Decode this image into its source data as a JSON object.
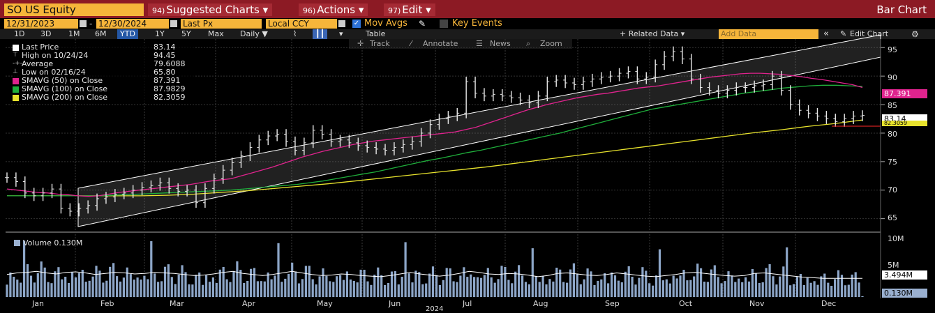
{
  "header": {
    "ticker": "SO US Equity",
    "menus": [
      {
        "num": "94)",
        "label": "Suggested Charts ▾"
      },
      {
        "num": "96)",
        "label": "Actions ▾"
      },
      {
        "num": "97)",
        "label": "Edit ▾"
      }
    ],
    "chart_title": "Bar Chart"
  },
  "controls": {
    "start_date": "12/31/2023",
    "end_date": "12/30/2024",
    "dash": "-",
    "field": "Last Px",
    "currency": "Local CCY",
    "mov_avgs": "Mov Avgs",
    "key_events": "Key Events"
  },
  "toolbar": {
    "periods": [
      "1D",
      "3D",
      "1M",
      "6M",
      "YTD",
      "1Y",
      "5Y",
      "Max"
    ],
    "active_period": "YTD",
    "frequency": "Daily ▼",
    "table": "Table",
    "related_data": "+ Related Data ▾",
    "add_data_placeholder": "Add Data",
    "edit_chart": "Edit Chart",
    "collapse": "«",
    "gear": "⚙"
  },
  "tools": [
    "Track",
    "Annotate",
    "News",
    "Zoom"
  ],
  "legend": [
    {
      "name": "Last Price",
      "value": "83.14",
      "color": "#ffffff"
    },
    {
      "name": "High on 10/24/24",
      "value": "94.45",
      "color": "none"
    },
    {
      "name": "Average",
      "value": "79.6088",
      "color": "none"
    },
    {
      "name": "Low on 02/16/24",
      "value": "65.80",
      "color": "none"
    },
    {
      "name": "SMAVG (50)  on Close",
      "value": "87.391",
      "color": "#e0238e"
    },
    {
      "name": "SMAVG (100)  on Close",
      "value": "87.9829",
      "color": "#1fae3b"
    },
    {
      "name": "SMAVG (200)  on Close",
      "value": "82.3059",
      "color": "#e7e22d"
    }
  ],
  "volume_legend": {
    "name": "Volume",
    "value": "0.130M"
  },
  "flags": {
    "sma50": {
      "text": "87.391",
      "bg": "#e0238e",
      "fg": "#ffffff"
    },
    "last": {
      "text": "83.14",
      "bg": "#ffffff",
      "fg": "#000000"
    },
    "sma200": {
      "text": "82.3059",
      "bg": "#e7e22d",
      "fg": "#000000"
    },
    "vol_avg": {
      "text": "3.494M",
      "bg": "#ffffff",
      "fg": "#000000"
    },
    "vol_last": {
      "text": "0.130M",
      "bg": "#9ab0d0",
      "fg": "#000000"
    }
  },
  "chart_data": {
    "type": "bar",
    "title": "SO US Equity",
    "x_label": "2024",
    "months": [
      "Jan",
      "Feb",
      "Mar",
      "Apr",
      "May",
      "Jun",
      "Jul",
      "Aug",
      "Sep",
      "Oct",
      "Nov",
      "Dec"
    ],
    "price_axis": {
      "ticks": [
        65,
        70,
        75,
        80,
        85,
        90,
        95
      ],
      "ylim": [
        63,
        96.5
      ]
    },
    "volume_axis": {
      "ticks": [
        "5M",
        "10M"
      ],
      "tick_values": [
        5,
        10
      ],
      "ylim": [
        0,
        12
      ]
    },
    "price_close": [
      72.2,
      71.5,
      69.5,
      69.0,
      69.5,
      70.2,
      66.8,
      66.3,
      66.8,
      67.3,
      68.5,
      68.8,
      69.3,
      69.5,
      70.0,
      70.5,
      70.8,
      71.3,
      70.3,
      69.8,
      70.0,
      67.8,
      70.3,
      72.0,
      73.5,
      74.8,
      76.0,
      77.5,
      78.8,
      79.5,
      79.8,
      78.5,
      77.0,
      78.3,
      80.5,
      79.8,
      78.5,
      78.8,
      78.3,
      77.8,
      77.5,
      77.2,
      77.0,
      77.5,
      78.0,
      78.5,
      80.0,
      81.5,
      82.5,
      83.0,
      83.5,
      89.0,
      87.0,
      86.5,
      86.8,
      86.5,
      86.2,
      85.8,
      85.3,
      86.5,
      89.0,
      89.3,
      88.8,
      88.5,
      89.0,
      89.5,
      89.8,
      90.0,
      90.5,
      90.8,
      89.5,
      89.8,
      92.0,
      93.5,
      94.3,
      93.0,
      89.5,
      88.0,
      87.5,
      87.0,
      87.5,
      88.0,
      88.0,
      88.3,
      88.5,
      90.0,
      87.5,
      85.0,
      84.0,
      83.5,
      83.0,
      82.5,
      82.0,
      82.5,
      83.0,
      83.1
    ],
    "sma50": [
      [
        1,
        70.2
      ],
      [
        2,
        70.0
      ],
      [
        3,
        69.8
      ],
      [
        4,
        69.6
      ],
      [
        5,
        69.5
      ],
      [
        6,
        69.3
      ],
      [
        7,
        69.2
      ],
      [
        8,
        69.0
      ],
      [
        9,
        68.9
      ],
      [
        10,
        69.0
      ],
      [
        11,
        69.3
      ],
      [
        12,
        69.6
      ],
      [
        13,
        69.8
      ],
      [
        14,
        70.0
      ],
      [
        15,
        70.2
      ],
      [
        16,
        70.4
      ],
      [
        17,
        70.6
      ],
      [
        18,
        70.8
      ],
      [
        19,
        71.0
      ],
      [
        20,
        71.3
      ],
      [
        21,
        71.6
      ],
      [
        22,
        71.8
      ],
      [
        23,
        72.0
      ],
      [
        24,
        72.5
      ],
      [
        25,
        73.0
      ],
      [
        26,
        73.5
      ],
      [
        27,
        74.0
      ],
      [
        28,
        74.6
      ],
      [
        29,
        75.2
      ],
      [
        30,
        75.8
      ],
      [
        31,
        76.3
      ],
      [
        32,
        76.8
      ],
      [
        33,
        77.2
      ],
      [
        34,
        77.6
      ],
      [
        35,
        78.0
      ],
      [
        36,
        78.3
      ],
      [
        37,
        78.6
      ],
      [
        38,
        78.8
      ],
      [
        39,
        79.0
      ],
      [
        40,
        79.2
      ],
      [
        41,
        79.4
      ],
      [
        42,
        79.6
      ],
      [
        43,
        79.8
      ],
      [
        44,
        80.0
      ],
      [
        45,
        80.2
      ],
      [
        46,
        80.6
      ],
      [
        47,
        81.0
      ],
      [
        48,
        81.6
      ],
      [
        49,
        82.2
      ],
      [
        50,
        82.8
      ],
      [
        51,
        83.4
      ],
      [
        52,
        84.0
      ],
      [
        53,
        84.5
      ],
      [
        54,
        85.0
      ],
      [
        55,
        85.4
      ],
      [
        56,
        85.8
      ],
      [
        57,
        86.2
      ],
      [
        58,
        86.5
      ],
      [
        59,
        86.8
      ],
      [
        60,
        87.0
      ],
      [
        61,
        87.3
      ],
      [
        62,
        87.6
      ],
      [
        63,
        87.9
      ],
      [
        64,
        88.1
      ],
      [
        65,
        88.3
      ],
      [
        66,
        88.6
      ],
      [
        67,
        88.9
      ],
      [
        68,
        89.2
      ],
      [
        69,
        89.5
      ],
      [
        70,
        89.8
      ],
      [
        71,
        90.0
      ],
      [
        72,
        90.2
      ],
      [
        73,
        90.4
      ],
      [
        74,
        90.5
      ],
      [
        75,
        90.5
      ],
      [
        76,
        90.4
      ],
      [
        77,
        90.3
      ],
      [
        78,
        90.1
      ],
      [
        79,
        89.9
      ],
      [
        80,
        89.6
      ],
      [
        81,
        89.4
      ],
      [
        82,
        89.1
      ],
      [
        83,
        88.8
      ],
      [
        84,
        88.5
      ],
      [
        85,
        88.0
      ]
    ],
    "sma100": [
      [
        1,
        69.0
      ],
      [
        2,
        69.0
      ],
      [
        3,
        69.0
      ],
      [
        4,
        69.0
      ],
      [
        5,
        69.0
      ],
      [
        6,
        69.0
      ],
      [
        7,
        69.0
      ],
      [
        8,
        69.0
      ],
      [
        9,
        69.1
      ],
      [
        10,
        69.2
      ],
      [
        11,
        69.3
      ],
      [
        12,
        69.4
      ],
      [
        13,
        69.5
      ],
      [
        14,
        69.6
      ],
      [
        15,
        69.7
      ],
      [
        16,
        69.8
      ],
      [
        17,
        69.9
      ],
      [
        18,
        70.0
      ],
      [
        19,
        70.2
      ],
      [
        20,
        70.4
      ],
      [
        21,
        70.6
      ],
      [
        22,
        70.8
      ],
      [
        23,
        71.0
      ],
      [
        24,
        71.3
      ],
      [
        25,
        71.6
      ],
      [
        26,
        72.0
      ],
      [
        27,
        72.4
      ],
      [
        28,
        72.8
      ],
      [
        29,
        73.2
      ],
      [
        30,
        73.7
      ],
      [
        31,
        74.2
      ],
      [
        32,
        74.7
      ],
      [
        33,
        75.2
      ],
      [
        34,
        75.6
      ],
      [
        35,
        76.1
      ],
      [
        36,
        76.6
      ],
      [
        37,
        77.0
      ],
      [
        38,
        77.5
      ],
      [
        39,
        78.0
      ],
      [
        40,
        78.5
      ],
      [
        41,
        79.0
      ],
      [
        42,
        79.5
      ],
      [
        43,
        80.0
      ],
      [
        44,
        80.6
      ],
      [
        45,
        81.2
      ],
      [
        46,
        81.8
      ],
      [
        47,
        82.4
      ],
      [
        48,
        83.0
      ],
      [
        49,
        83.6
      ],
      [
        50,
        84.2
      ],
      [
        51,
        84.6
      ],
      [
        52,
        85.0
      ],
      [
        53,
        85.4
      ],
      [
        54,
        85.8
      ],
      [
        55,
        86.2
      ],
      [
        56,
        86.6
      ],
      [
        57,
        87.0
      ],
      [
        58,
        87.3
      ],
      [
        59,
        87.6
      ],
      [
        60,
        87.9
      ],
      [
        61,
        88.1
      ],
      [
        62,
        88.3
      ],
      [
        63,
        88.4
      ],
      [
        64,
        88.4
      ],
      [
        65,
        88.3
      ],
      [
        66,
        88.2
      ]
    ],
    "sma200": [
      [
        1,
        69.0
      ],
      [
        2,
        69.0
      ],
      [
        3,
        69.0
      ],
      [
        4,
        69.0
      ],
      [
        5,
        69.0
      ],
      [
        6,
        69.0
      ],
      [
        7,
        69.1
      ],
      [
        8,
        69.3
      ],
      [
        9,
        69.6
      ],
      [
        10,
        69.9
      ],
      [
        11,
        70.3
      ],
      [
        12,
        70.7
      ],
      [
        13,
        71.1
      ],
      [
        14,
        71.6
      ],
      [
        15,
        72.1
      ],
      [
        16,
        72.6
      ],
      [
        17,
        73.1
      ],
      [
        18,
        73.6
      ],
      [
        19,
        74.1
      ],
      [
        20,
        74.7
      ],
      [
        21,
        75.3
      ],
      [
        22,
        75.9
      ],
      [
        23,
        76.5
      ],
      [
        24,
        77.1
      ],
      [
        25,
        77.7
      ],
      [
        26,
        78.3
      ],
      [
        27,
        78.9
      ],
      [
        28,
        79.5
      ],
      [
        29,
        80.1
      ],
      [
        30,
        80.6
      ],
      [
        31,
        81.2
      ],
      [
        32,
        81.7
      ],
      [
        33,
        82.3
      ]
    ],
    "volume_avg": [
      4.2,
      4.5,
      4.6,
      4.8,
      4.5,
      4.3,
      4.6,
      4.7,
      4.5,
      4.2,
      4.4,
      4.6,
      4.5,
      4.3,
      4.4,
      4.6,
      4.5,
      4.4,
      4.2,
      4.0,
      4.1,
      4.3,
      4.6,
      4.8,
      4.4,
      4.2,
      4.0,
      4.2,
      4.5,
      4.8,
      4.5,
      4.2,
      4.0,
      4.1,
      4.3,
      4.2,
      4.0,
      3.9,
      3.8,
      4.0,
      4.3,
      4.6,
      4.3,
      4.1,
      3.9,
      4.1,
      4.4,
      4.8,
      4.6,
      4.3,
      4.2,
      4.4,
      4.3,
      4.1,
      3.8,
      4.0,
      4.4,
      4.5,
      4.3,
      4.1,
      4.0,
      4.2,
      4.5,
      4.3,
      4.1,
      3.9,
      3.8,
      4.0,
      4.2,
      4.5,
      4.6,
      4.4,
      4.2,
      4.0,
      3.9,
      4.0,
      4.4,
      4.5,
      4.3,
      4.1,
      3.9,
      3.7,
      3.6,
      3.5,
      3.5,
      3.5,
      3.5,
      3.5
    ],
    "volume_last": "0.130M"
  }
}
